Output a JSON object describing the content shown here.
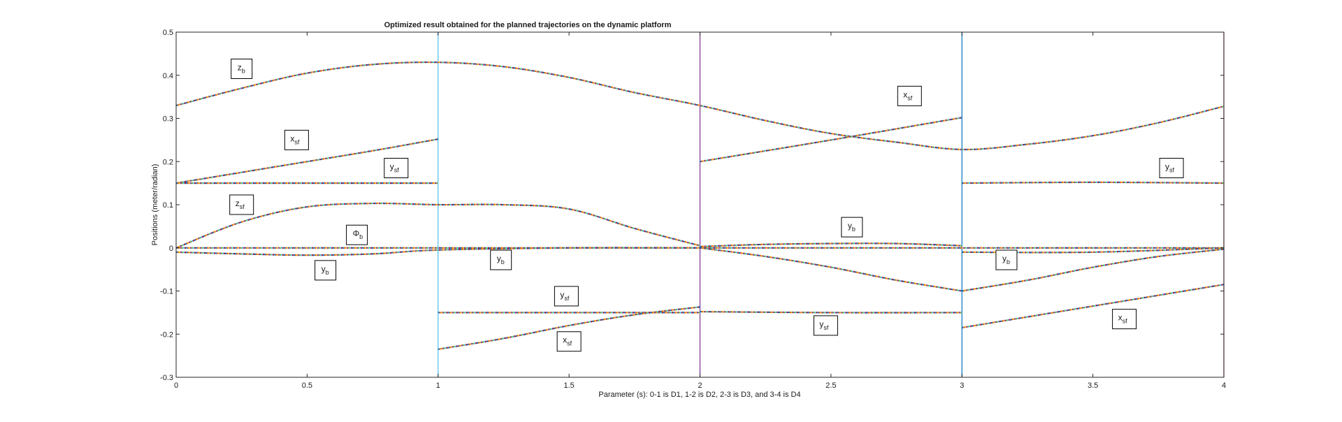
{
  "chart_data": {
    "type": "line",
    "title": "Optimized result obtained for the planned trajectories on the dynamic platform",
    "xlabel": "Parameter (s):  0-1 is D1, 1-2 is D2, 2-3 is D3, and 3-4 is D4",
    "ylabel": "Positions  (meter/radian)",
    "xlim": [
      0,
      4
    ],
    "ylim": [
      -0.3,
      0.5
    ],
    "x_ticks": [
      "0",
      "0.5",
      "1",
      "1.5",
      "2",
      "2.5",
      "3",
      "3.5",
      "4"
    ],
    "y_ticks": [
      "-0.3",
      "-0.2",
      "-0.1",
      "0",
      "0.1",
      "0.2",
      "0.3",
      "0.4",
      "0.5"
    ],
    "grid": false,
    "phase_boundaries": [
      {
        "x": 1,
        "color": "#4dbeee"
      },
      {
        "x": 2,
        "color": "#7e2f8e"
      },
      {
        "x": 3,
        "color": "#0072bd"
      },
      {
        "x": 4,
        "color": "#a2142f"
      }
    ],
    "series": [
      {
        "x": [
          0,
          0.25,
          0.5,
          0.75,
          1,
          1.25,
          1.5,
          1.75,
          2,
          2.25,
          2.5,
          2.75,
          3,
          3.25,
          3.5,
          3.75,
          4
        ],
        "y": [
          0.33,
          0.37,
          0.405,
          0.425,
          0.43,
          0.42,
          0.395,
          0.36,
          0.33,
          0.295,
          0.265,
          0.245,
          0.228,
          0.24,
          0.26,
          0.29,
          0.328
        ]
      },
      {
        "x": [
          0,
          0.25,
          0.5,
          0.75,
          1
        ],
        "y": [
          0.15,
          0.175,
          0.2,
          0.225,
          0.252
        ]
      },
      {
        "x": [
          0,
          0.5,
          1
        ],
        "y": [
          0.15,
          0.15,
          0.15
        ]
      },
      {
        "x": [
          0,
          0.25,
          0.5,
          0.75,
          1,
          1.25,
          1.5,
          1.75,
          2
        ],
        "y": [
          0,
          0.06,
          0.095,
          0.103,
          0.1,
          0.1,
          0.09,
          0.045,
          0.005
        ]
      },
      {
        "x": [
          0,
          1,
          2,
          3,
          4
        ],
        "y": [
          0,
          0,
          0,
          0,
          0
        ]
      },
      {
        "x": [
          0,
          0.25,
          0.5,
          0.75,
          1,
          1.5,
          2
        ],
        "y": [
          -0.01,
          -0.014,
          -0.017,
          -0.014,
          -0.005,
          0,
          0
        ]
      },
      {
        "x": [
          1,
          1.5,
          2
        ],
        "y": [
          -0.15,
          -0.15,
          -0.15
        ]
      },
      {
        "x": [
          1,
          1.25,
          1.5,
          1.75,
          2
        ],
        "y": [
          -0.235,
          -0.21,
          -0.18,
          -0.155,
          -0.137
        ]
      },
      {
        "x": [
          2,
          2.5,
          3
        ],
        "y": [
          0.2,
          0.25,
          0.302
        ]
      },
      {
        "x": [
          2,
          2.5,
          3
        ],
        "y": [
          -0.148,
          -0.15,
          -0.15
        ]
      },
      {
        "x": [
          2,
          2.25,
          2.5,
          2.75,
          3
        ],
        "y": [
          0.003,
          0.008,
          0.01,
          0.01,
          0.005
        ]
      },
      {
        "x": [
          2,
          2.25,
          2.5,
          2.75,
          3
        ],
        "y": [
          0,
          -0.02,
          -0.045,
          -0.075,
          -0.1
        ]
      },
      {
        "x": [
          3,
          3.5,
          4
        ],
        "y": [
          0.15,
          0.152,
          0.15
        ]
      },
      {
        "x": [
          3,
          3.25,
          3.5,
          3.75,
          4
        ],
        "y": [
          -0.1,
          -0.075,
          -0.045,
          -0.02,
          -0.003
        ]
      },
      {
        "x": [
          3,
          3.25,
          3.5,
          3.75,
          4
        ],
        "y": [
          -0.185,
          -0.16,
          -0.135,
          -0.11,
          -0.085
        ]
      },
      {
        "x": [
          3,
          3.5,
          4
        ],
        "y": [
          -0.01,
          -0.01,
          0
        ]
      }
    ],
    "annotations": [
      {
        "main": "z",
        "sub": "b",
        "x": 0.25,
        "y": 0.415
      },
      {
        "main": "x",
        "sub": "sf",
        "x": 0.46,
        "y": 0.25
      },
      {
        "main": "y",
        "sub": "sf",
        "x": 0.84,
        "y": 0.185
      },
      {
        "main": "z",
        "sub": "sf",
        "x": 0.25,
        "y": 0.1
      },
      {
        "main": "Φ",
        "sub": "b",
        "x": 0.69,
        "y": 0.03
      },
      {
        "main": "y",
        "sub": "b",
        "x": 0.57,
        "y": -0.052
      },
      {
        "main": "y",
        "sub": "b",
        "x": 1.24,
        "y": -0.028
      },
      {
        "main": "y",
        "sub": "sf",
        "x": 1.49,
        "y": -0.112
      },
      {
        "main": "x",
        "sub": "sf",
        "x": 1.5,
        "y": -0.217
      },
      {
        "main": "x",
        "sub": "sf",
        "x": 2.8,
        "y": 0.352
      },
      {
        "main": "y",
        "sub": "b",
        "x": 2.58,
        "y": 0.048
      },
      {
        "main": "y",
        "sub": "sf",
        "x": 2.48,
        "y": -0.18
      },
      {
        "main": "y",
        "sub": "sf",
        "x": 3.8,
        "y": 0.185
      },
      {
        "main": "y",
        "sub": "b",
        "x": 3.17,
        "y": -0.028
      },
      {
        "main": "x",
        "sub": "sf",
        "x": 3.62,
        "y": -0.165
      }
    ]
  }
}
